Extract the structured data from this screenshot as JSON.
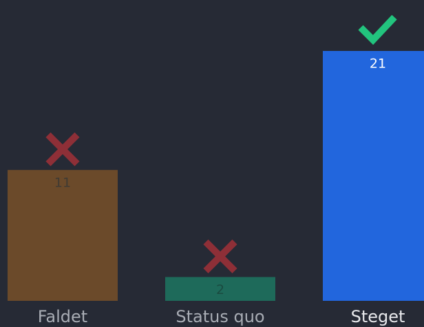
{
  "chart_data": {
    "type": "bar",
    "categories": [
      "Faldet",
      "Status quo",
      "Steget"
    ],
    "values": [
      11,
      2,
      21
    ],
    "colors": [
      "#6b4a2a",
      "#1e6a5a",
      "#2266dd"
    ],
    "ylim": [
      0,
      21
    ]
  }
}
